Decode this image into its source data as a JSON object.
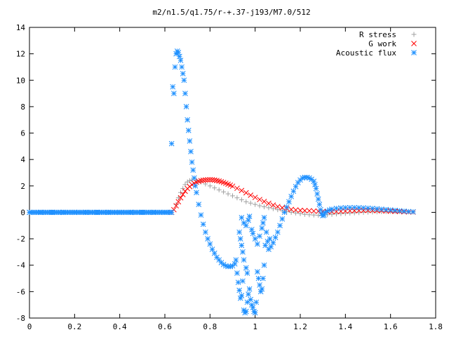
{
  "chart_data": {
    "type": "scatter",
    "title": "m2/n1.5/q1.75/r-+.37-j193/M7.0/512",
    "xlabel": "",
    "ylabel": "",
    "xlim": [
      0,
      1.8
    ],
    "ylim": [
      -8,
      14
    ],
    "grid": false,
    "legend_position": "top-right",
    "x_ticks": [
      {
        "value": 0,
        "label": "0"
      },
      {
        "value": 0.2,
        "label": "0.2"
      },
      {
        "value": 0.4,
        "label": "0.4"
      },
      {
        "value": 0.6,
        "label": "0.6"
      },
      {
        "value": 0.8,
        "label": "0.8"
      },
      {
        "value": 1.0,
        "label": "1"
      },
      {
        "value": 1.2,
        "label": "1.2"
      },
      {
        "value": 1.4,
        "label": "1.4"
      },
      {
        "value": 1.6,
        "label": "1.6"
      },
      {
        "value": 1.8,
        "label": "1.8"
      }
    ],
    "y_ticks": [
      {
        "value": -8,
        "label": "-8"
      },
      {
        "value": -6,
        "label": "-6"
      },
      {
        "value": -4,
        "label": "-4"
      },
      {
        "value": -2,
        "label": "-2"
      },
      {
        "value": 0,
        "label": "0"
      },
      {
        "value": 2,
        "label": "2"
      },
      {
        "value": 4,
        "label": "4"
      },
      {
        "value": 6,
        "label": "6"
      },
      {
        "value": 8,
        "label": "8"
      },
      {
        "value": 10,
        "label": "10"
      },
      {
        "value": 12,
        "label": "12"
      },
      {
        "value": 14,
        "label": "14"
      }
    ],
    "series": [
      {
        "name": "R stress",
        "marker": "plus",
        "color": "#a0a0a0",
        "points": [
          [
            0,
            0
          ],
          [
            0.1,
            0
          ],
          [
            0.2,
            0
          ],
          [
            0.3,
            0
          ],
          [
            0.4,
            0
          ],
          [
            0.5,
            0
          ],
          [
            0.6,
            0
          ],
          [
            0.63,
            0
          ],
          [
            0.65,
            0.6
          ],
          [
            0.66,
            1.1
          ],
          [
            0.67,
            1.5
          ],
          [
            0.68,
            1.8
          ],
          [
            0.69,
            2.1
          ],
          [
            0.7,
            2.3
          ],
          [
            0.71,
            2.4
          ],
          [
            0.72,
            2.45
          ],
          [
            0.74,
            2.4
          ],
          [
            0.76,
            2.3
          ],
          [
            0.78,
            2.15
          ],
          [
            0.8,
            2.0
          ],
          [
            0.82,
            1.85
          ],
          [
            0.84,
            1.7
          ],
          [
            0.86,
            1.55
          ],
          [
            0.88,
            1.4
          ],
          [
            0.9,
            1.25
          ],
          [
            0.92,
            1.1
          ],
          [
            0.94,
            0.95
          ],
          [
            0.96,
            0.8
          ],
          [
            0.98,
            0.7
          ],
          [
            1.0,
            0.6
          ],
          [
            1.02,
            0.5
          ],
          [
            1.04,
            0.42
          ],
          [
            1.06,
            0.35
          ],
          [
            1.08,
            0.28
          ],
          [
            1.1,
            0.2
          ],
          [
            1.12,
            0.12
          ],
          [
            1.14,
            0.05
          ],
          [
            1.16,
            0.0
          ],
          [
            1.18,
            -0.05
          ],
          [
            1.2,
            -0.1
          ],
          [
            1.22,
            -0.15
          ],
          [
            1.24,
            -0.18
          ],
          [
            1.26,
            -0.2
          ],
          [
            1.28,
            -0.22
          ],
          [
            1.3,
            -0.2
          ],
          [
            1.32,
            -0.18
          ],
          [
            1.34,
            -0.15
          ],
          [
            1.36,
            -0.12
          ],
          [
            1.38,
            -0.1
          ],
          [
            1.4,
            -0.08
          ],
          [
            1.42,
            -0.06
          ],
          [
            1.44,
            -0.04
          ],
          [
            1.46,
            -0.02
          ],
          [
            1.48,
            0.0
          ],
          [
            1.5,
            0.02
          ],
          [
            1.52,
            0.03
          ],
          [
            1.54,
            0.04
          ],
          [
            1.56,
            0.05
          ],
          [
            1.58,
            0.06
          ],
          [
            1.6,
            0.07
          ],
          [
            1.62,
            0.07
          ],
          [
            1.64,
            0.06
          ],
          [
            1.66,
            0.05
          ],
          [
            1.68,
            0.04
          ],
          [
            1.7,
            0.03
          ]
        ]
      },
      {
        "name": "G work",
        "marker": "cross",
        "color": "#ff0000",
        "points": [
          [
            0.63,
            0
          ],
          [
            0.64,
            0.2
          ],
          [
            0.65,
            0.5
          ],
          [
            0.66,
            0.8
          ],
          [
            0.67,
            1.1
          ],
          [
            0.68,
            1.35
          ],
          [
            0.69,
            1.6
          ],
          [
            0.7,
            1.8
          ],
          [
            0.71,
            1.95
          ],
          [
            0.72,
            2.1
          ],
          [
            0.73,
            2.2
          ],
          [
            0.74,
            2.28
          ],
          [
            0.75,
            2.35
          ],
          [
            0.76,
            2.4
          ],
          [
            0.77,
            2.43
          ],
          [
            0.78,
            2.45
          ],
          [
            0.79,
            2.46
          ],
          [
            0.8,
            2.47
          ],
          [
            0.81,
            2.46
          ],
          [
            0.82,
            2.44
          ],
          [
            0.83,
            2.41
          ],
          [
            0.84,
            2.37
          ],
          [
            0.85,
            2.32
          ],
          [
            0.86,
            2.26
          ],
          [
            0.87,
            2.2
          ],
          [
            0.88,
            2.13
          ],
          [
            0.89,
            2.06
          ],
          [
            0.9,
            1.98
          ],
          [
            0.92,
            1.82
          ],
          [
            0.94,
            1.65
          ],
          [
            0.96,
            1.48
          ],
          [
            0.98,
            1.3
          ],
          [
            1.0,
            1.13
          ],
          [
            1.02,
            0.97
          ],
          [
            1.04,
            0.82
          ],
          [
            1.06,
            0.68
          ],
          [
            1.08,
            0.55
          ],
          [
            1.1,
            0.44
          ],
          [
            1.12,
            0.35
          ],
          [
            1.14,
            0.28
          ],
          [
            1.16,
            0.22
          ],
          [
            1.18,
            0.18
          ],
          [
            1.2,
            0.15
          ],
          [
            1.22,
            0.13
          ],
          [
            1.24,
            0.12
          ],
          [
            1.26,
            0.1
          ],
          [
            1.28,
            0.08
          ],
          [
            1.3,
            0.06
          ],
          [
            1.32,
            0.05
          ],
          [
            1.34,
            0.05
          ],
          [
            1.36,
            0.06
          ],
          [
            1.38,
            0.08
          ],
          [
            1.4,
            0.1
          ],
          [
            1.42,
            0.12
          ],
          [
            1.44,
            0.13
          ],
          [
            1.46,
            0.14
          ],
          [
            1.48,
            0.15
          ],
          [
            1.5,
            0.15
          ],
          [
            1.52,
            0.14
          ],
          [
            1.54,
            0.13
          ],
          [
            1.56,
            0.12
          ],
          [
            1.58,
            0.1
          ],
          [
            1.6,
            0.09
          ],
          [
            1.62,
            0.07
          ],
          [
            1.64,
            0.06
          ],
          [
            1.66,
            0.04
          ],
          [
            1.68,
            0.03
          ],
          [
            1.7,
            0.02
          ]
        ]
      },
      {
        "name": "Acoustic flux",
        "marker": "star",
        "color": "#1e90ff",
        "points": [
          [
            0,
            0
          ],
          [
            0.05,
            0
          ],
          [
            0.1,
            0
          ],
          [
            0.15,
            0
          ],
          [
            0.2,
            0
          ],
          [
            0.25,
            0
          ],
          [
            0.3,
            0
          ],
          [
            0.35,
            0
          ],
          [
            0.4,
            0
          ],
          [
            0.45,
            0
          ],
          [
            0.5,
            0
          ],
          [
            0.55,
            0
          ],
          [
            0.6,
            0
          ],
          [
            0.63,
            0
          ],
          [
            0.63,
            5.2
          ],
          [
            0.635,
            9.5
          ],
          [
            0.64,
            9.0
          ],
          [
            0.645,
            11.0
          ],
          [
            0.65,
            12.0
          ],
          [
            0.655,
            12.2
          ],
          [
            0.66,
            12.1
          ],
          [
            0.665,
            11.8
          ],
          [
            0.67,
            11.5
          ],
          [
            0.675,
            11.0
          ],
          [
            0.68,
            10.5
          ],
          [
            0.685,
            10.0
          ],
          [
            0.69,
            9.0
          ],
          [
            0.695,
            8.0
          ],
          [
            0.7,
            7.0
          ],
          [
            0.705,
            6.2
          ],
          [
            0.71,
            5.4
          ],
          [
            0.715,
            4.6
          ],
          [
            0.72,
            3.8
          ],
          [
            0.725,
            3.2
          ],
          [
            0.73,
            2.6
          ],
          [
            0.735,
            2.0
          ],
          [
            0.74,
            1.5
          ],
          [
            0.75,
            0.6
          ],
          [
            0.76,
            -0.2
          ],
          [
            0.77,
            -0.9
          ],
          [
            0.78,
            -1.5
          ],
          [
            0.79,
            -2.0
          ],
          [
            0.8,
            -2.4
          ],
          [
            0.81,
            -2.8
          ],
          [
            0.82,
            -3.1
          ],
          [
            0.83,
            -3.4
          ],
          [
            0.84,
            -3.6
          ],
          [
            0.85,
            -3.8
          ],
          [
            0.86,
            -3.95
          ],
          [
            0.87,
            -4.05
          ],
          [
            0.88,
            -4.1
          ],
          [
            0.89,
            -4.1
          ],
          [
            0.9,
            -4.05
          ],
          [
            0.91,
            -3.9
          ],
          [
            0.915,
            -3.6
          ],
          [
            0.92,
            -4.6
          ],
          [
            0.925,
            -5.3
          ],
          [
            0.93,
            -5.9
          ],
          [
            0.935,
            -6.5
          ],
          [
            0.94,
            -6.3
          ],
          [
            0.945,
            -5.2
          ],
          [
            0.95,
            -7.4
          ],
          [
            0.955,
            -7.6
          ],
          [
            0.96,
            -7.5
          ],
          [
            0.965,
            -6.8
          ],
          [
            0.97,
            -6.2
          ],
          [
            0.975,
            -5.8
          ],
          [
            0.98,
            -6.6
          ],
          [
            0.985,
            -7.0
          ],
          [
            0.99,
            -7.2
          ],
          [
            0.995,
            -7.5
          ],
          [
            1.0,
            -7.6
          ],
          [
            1.005,
            -6.8
          ],
          [
            1.01,
            -4.5
          ],
          [
            1.015,
            -5.0
          ],
          [
            1.02,
            -5.5
          ],
          [
            1.025,
            -6.0
          ],
          [
            1.03,
            -5.8
          ],
          [
            1.035,
            -5.0
          ],
          [
            1.04,
            -4.0
          ],
          [
            1.045,
            -2.5
          ],
          [
            1.05,
            -1.5
          ],
          [
            1.055,
            -2.2
          ],
          [
            1.06,
            -2.8
          ],
          [
            1.065,
            -2.0
          ],
          [
            0.94,
            -0.4
          ],
          [
            0.95,
            -0.8
          ],
          [
            0.96,
            -1.0
          ],
          [
            0.97,
            -0.6
          ],
          [
            0.975,
            -0.3
          ],
          [
            0.985,
            -1.3
          ],
          [
            0.99,
            -1.6
          ],
          [
            1.0,
            -2.0
          ],
          [
            1.01,
            -2.4
          ],
          [
            1.02,
            -1.8
          ],
          [
            1.03,
            -1.2
          ],
          [
            1.035,
            -0.8
          ],
          [
            1.04,
            -0.4
          ],
          [
            0.93,
            -1.5
          ],
          [
            0.935,
            -2.0
          ],
          [
            0.94,
            -2.5
          ],
          [
            0.945,
            -3.0
          ],
          [
            0.95,
            -3.6
          ],
          [
            0.96,
            -4.2
          ],
          [
            0.965,
            -4.6
          ],
          [
            1.07,
            -2.6
          ],
          [
            1.08,
            -2.3
          ],
          [
            1.09,
            -1.9
          ],
          [
            1.1,
            -1.5
          ],
          [
            1.11,
            -1.0
          ],
          [
            1.12,
            -0.5
          ],
          [
            1.13,
            0.0
          ],
          [
            1.14,
            0.4
          ],
          [
            1.15,
            0.8
          ],
          [
            1.16,
            1.2
          ],
          [
            1.17,
            1.6
          ],
          [
            1.18,
            1.95
          ],
          [
            1.19,
            2.25
          ],
          [
            1.2,
            2.45
          ],
          [
            1.21,
            2.6
          ],
          [
            1.22,
            2.65
          ],
          [
            1.23,
            2.65
          ],
          [
            1.24,
            2.6
          ],
          [
            1.25,
            2.5
          ],
          [
            1.26,
            2.35
          ],
          [
            1.265,
            2.1
          ],
          [
            1.27,
            1.8
          ],
          [
            1.275,
            1.4
          ],
          [
            1.28,
            1.0
          ],
          [
            1.285,
            0.6
          ],
          [
            1.29,
            0.2
          ],
          [
            1.295,
            -0.1
          ],
          [
            1.3,
            -0.25
          ],
          [
            1.305,
            -0.2
          ],
          [
            1.31,
            0.0
          ],
          [
            1.32,
            0.1
          ],
          [
            1.33,
            0.18
          ],
          [
            1.34,
            0.24
          ],
          [
            1.36,
            0.3
          ],
          [
            1.38,
            0.33
          ],
          [
            1.4,
            0.35
          ],
          [
            1.42,
            0.36
          ],
          [
            1.44,
            0.36
          ],
          [
            1.46,
            0.35
          ],
          [
            1.48,
            0.34
          ],
          [
            1.5,
            0.32
          ],
          [
            1.52,
            0.3
          ],
          [
            1.54,
            0.27
          ],
          [
            1.56,
            0.24
          ],
          [
            1.58,
            0.21
          ],
          [
            1.6,
            0.18
          ],
          [
            1.62,
            0.15
          ],
          [
            1.64,
            0.12
          ],
          [
            1.66,
            0.09
          ],
          [
            1.68,
            0.06
          ],
          [
            1.7,
            0.04
          ]
        ]
      }
    ]
  }
}
